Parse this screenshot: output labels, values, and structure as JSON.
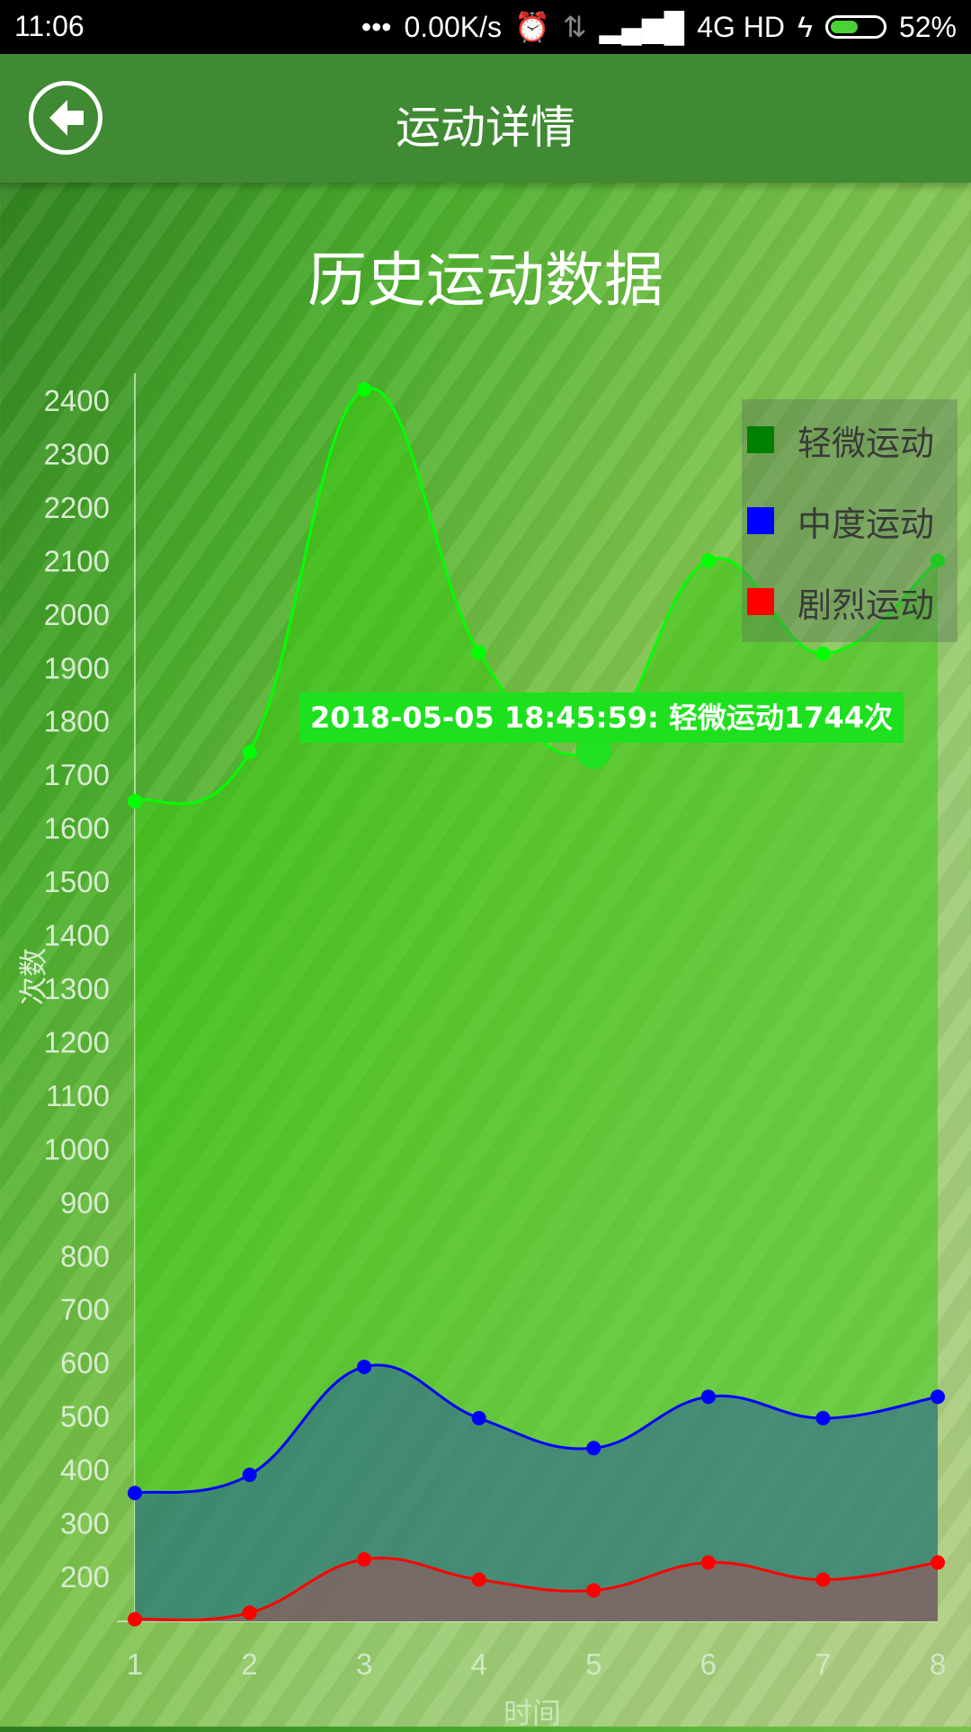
{
  "status_bar": {
    "time": "11:06",
    "network_speed": "0.00K/s",
    "network_type": "4G HD",
    "battery_percent": "52%",
    "battery_level": 0.52
  },
  "appbar": {
    "title": "运动详情",
    "back_icon": "back-arrow-icon"
  },
  "chart_data": {
    "type": "area",
    "title": "历史运动数据",
    "xlabel": "时间",
    "ylabel": "次数",
    "categories": [
      "1",
      "2",
      "3",
      "4",
      "5",
      "6",
      "7",
      "8"
    ],
    "yticks": [
      2400,
      2300,
      2200,
      2100,
      2000,
      1900,
      1800,
      1700,
      1600,
      1500,
      1400,
      1300,
      1200,
      1100,
      1000,
      900,
      800,
      700,
      600,
      500,
      400,
      300,
      200
    ],
    "ylim": [
      120,
      2450
    ],
    "legend_position": "top-right",
    "series": [
      {
        "name": "轻微运动",
        "color": "#00ff00",
        "legend_color": "#008000",
        "values": [
          1650,
          1742,
          2420,
          1928,
          1744,
          2100,
          1926,
          2100
        ]
      },
      {
        "name": "中度运动",
        "color": "#0000ff",
        "legend_color": "#0000ff",
        "values": [
          356,
          390,
          592,
          496,
          440,
          536,
          496,
          536
        ]
      },
      {
        "name": "剧烈运动",
        "color": "#ff0000",
        "legend_color": "#ff0000",
        "values": [
          120,
          132,
          232,
          194,
          174,
          226,
          194,
          226
        ]
      }
    ],
    "tooltip": {
      "text": "2018-05-05 18:45:59: 轻微运动1744次",
      "series": "轻微运动",
      "category": "5",
      "value": 1744
    }
  }
}
